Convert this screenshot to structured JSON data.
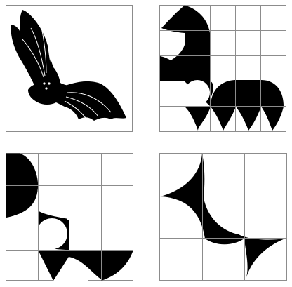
{
  "panels": [
    {
      "id": "bat-silhouette",
      "grid": null
    },
    {
      "id": "grid-5x5",
      "grid": {
        "rows": 5,
        "cols": 5
      }
    },
    {
      "id": "grid-4x4",
      "grid": {
        "rows": 4,
        "cols": 4
      }
    },
    {
      "id": "grid-3x3",
      "grid": {
        "rows": 3,
        "cols": 3
      }
    }
  ],
  "colors": {
    "ink": "#000000",
    "grid_line": "#8c8c8c",
    "background": "#ffffff",
    "highlight": "#ffffff"
  }
}
